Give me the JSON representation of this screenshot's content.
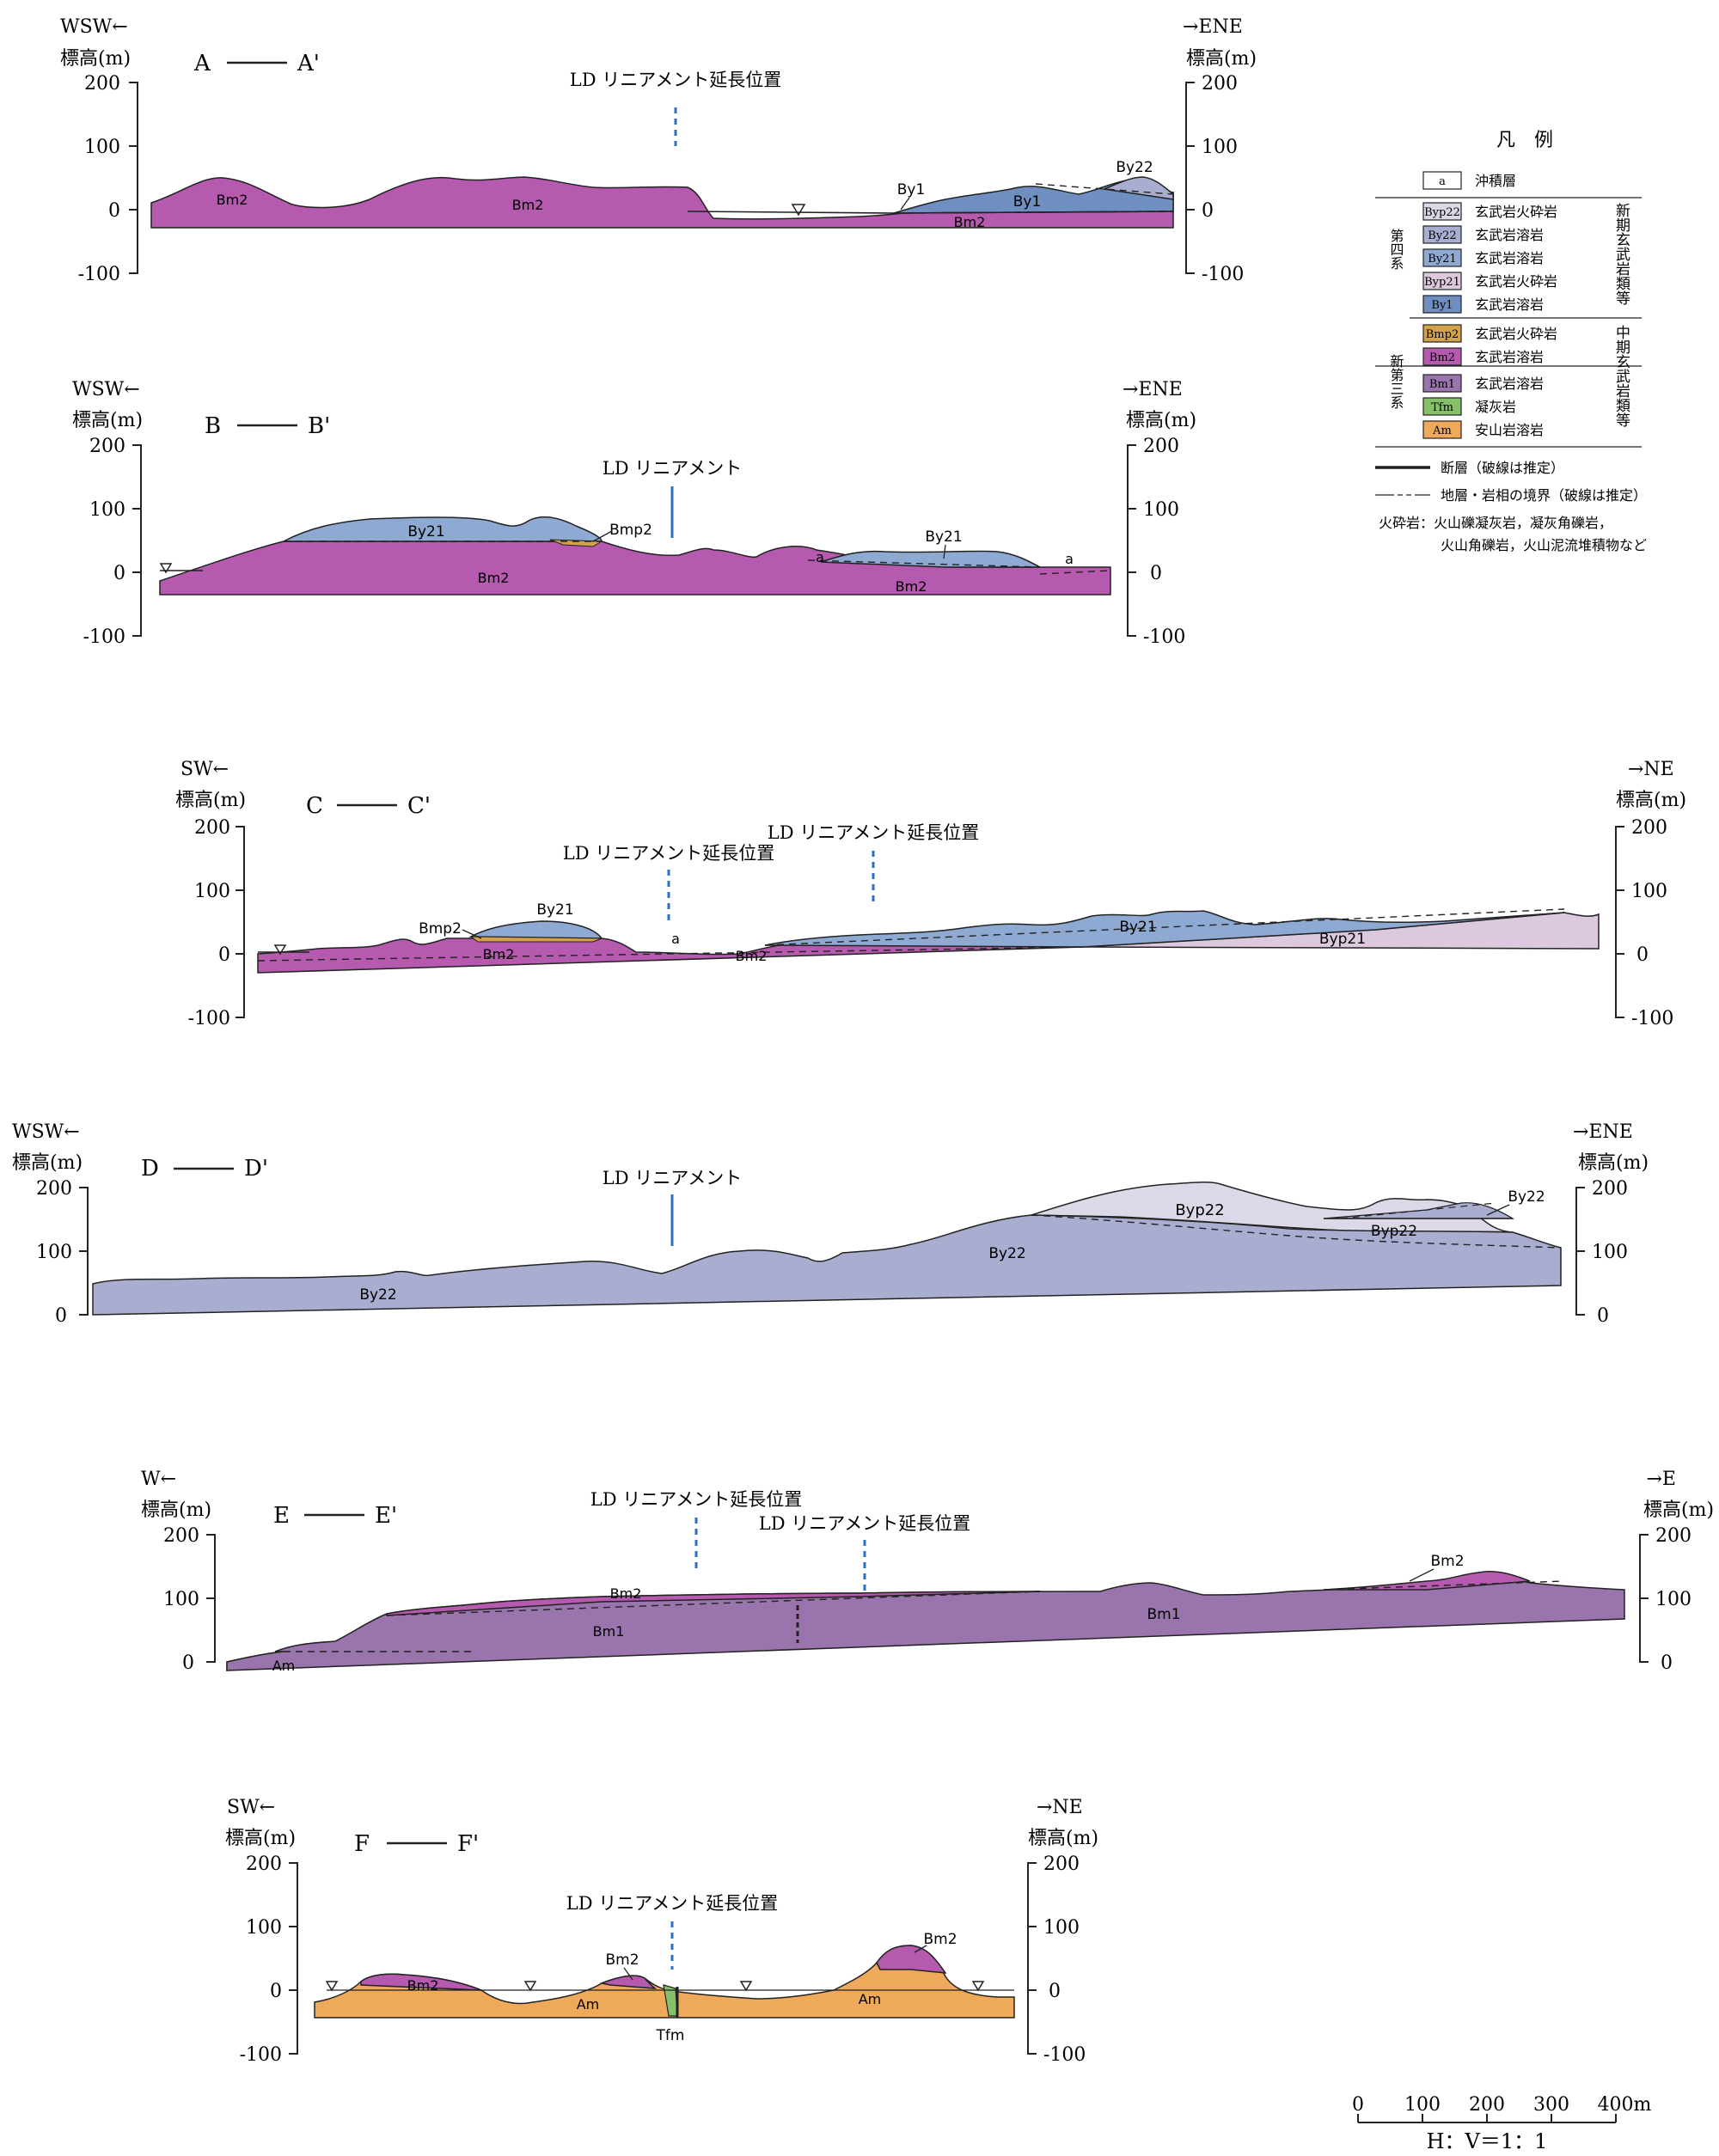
{
  "palette": {
    "bm2": "#b55aae",
    "bm1": "#9a74ad",
    "by1": "#6f8fc0",
    "by21": "#8ea9d2",
    "by22": "#a9add0",
    "byp21": "#ddc9dd",
    "byp22": "#dcd8e8",
    "am": "#eeaa5a",
    "tfm": "#86c06a",
    "bmp2": "#d4a24a",
    "lineament": "#2b6fc0",
    "stroke": "#222222"
  },
  "sections": [
    {
      "id": "A",
      "start": "A",
      "end": "A'",
      "left_dir": "WSW←",
      "right_dir": "→ENE",
      "axis_label": "標高(m)",
      "ticks": [
        "200",
        "100",
        "0",
        "-100"
      ],
      "lineament": "LD リニアメント延長位置",
      "units": [
        "Bm2",
        "Bm2",
        "By1",
        "By1",
        "By22",
        "Bm2"
      ]
    },
    {
      "id": "B",
      "start": "B",
      "end": "B'",
      "left_dir": "WSW←",
      "right_dir": "→ENE",
      "axis_label": "標高(m)",
      "ticks": [
        "200",
        "100",
        "0",
        "-100"
      ],
      "lineament": "LD リニアメント",
      "units": [
        "By21",
        "Bmp2",
        "Bm2",
        "a",
        "By21",
        "a",
        "Bm2"
      ]
    },
    {
      "id": "C",
      "start": "C",
      "end": "C'",
      "left_dir": "SW←",
      "right_dir": "→NE",
      "axis_label": "標高(m)",
      "ticks": [
        "200",
        "100",
        "0",
        "-100"
      ],
      "lineament_1": "LD リニアメント延長位置",
      "lineament_2": "LD リニアメント延長位置",
      "units": [
        "Bmp2",
        "By21",
        "Bm2",
        "a",
        "Bm2",
        "By21",
        "Byp21"
      ]
    },
    {
      "id": "D",
      "start": "D",
      "end": "D'",
      "left_dir": "WSW←",
      "right_dir": "→ENE",
      "axis_label": "標高(m)",
      "ticks": [
        "200",
        "100",
        "0"
      ],
      "lineament": "LD リニアメント",
      "units": [
        "By22",
        "By22",
        "Byp22",
        "Byp22",
        "By22"
      ]
    },
    {
      "id": "E",
      "start": "E",
      "end": "E'",
      "left_dir": "W←",
      "right_dir": "→E",
      "axis_label": "標高(m)",
      "ticks": [
        "200",
        "100",
        "0"
      ],
      "lineament_1": "LD リニアメント延長位置",
      "lineament_2": "LD リニアメント延長位置",
      "units": [
        "Bm2",
        "Bm1",
        "Am",
        "Bm1",
        "Bm2"
      ]
    },
    {
      "id": "F",
      "start": "F",
      "end": "F'",
      "left_dir": "SW←",
      "right_dir": "→NE",
      "axis_label": "標高(m)",
      "ticks": [
        "200",
        "100",
        "0",
        "-100"
      ],
      "lineament": "LD リニアメント延長位置",
      "units": [
        "Bm2",
        "Bm2",
        "Am",
        "Tfm",
        "Am",
        "Bm2"
      ]
    }
  ],
  "legend": {
    "title": "凡　例",
    "rows": [
      {
        "code": "a",
        "desc": "沖積層",
        "color": "#ffffff"
      },
      {
        "code": "Byp22",
        "desc": "玄武岩火砕岩",
        "color": "#dcd8e8"
      },
      {
        "code": "By22",
        "desc": "玄武岩溶岩",
        "color": "#a9add0"
      },
      {
        "code": "By21",
        "desc": "玄武岩溶岩",
        "color": "#8ea9d2"
      },
      {
        "code": "Byp21",
        "desc": "玄武岩火砕岩",
        "color": "#ddc9dd"
      },
      {
        "code": "By1",
        "desc": "玄武岩溶岩",
        "color": "#6f8fc0"
      },
      {
        "code": "Bmp2",
        "desc": "玄武岩火砕岩",
        "color": "#d4a24a"
      },
      {
        "code": "Bm2",
        "desc": "玄武岩溶岩",
        "color": "#b55aae"
      },
      {
        "code": "Bm1",
        "desc": "玄武岩溶岩",
        "color": "#9a74ad"
      },
      {
        "code": "Tfm",
        "desc": "凝灰岩",
        "color": "#86c06a"
      },
      {
        "code": "Am",
        "desc": "安山岩溶岩",
        "color": "#eeaa5a"
      }
    ],
    "group_quaternary": "第四系",
    "group_neogene": "新第三系",
    "group_new_basalt": "新期玄武岩類等",
    "group_mid_basalt": "中期玄武岩類等",
    "fault_note": "断層（破線は推定）",
    "boundary_note": "地層・岩相の境界（破線は推定）",
    "pyro_note_1": "火砕岩：火山礫凝灰岩，凝灰角礫岩，",
    "pyro_note_2": "火山角礫岩，火山泥流堆積物など"
  },
  "scale": {
    "ticks": [
      "0",
      "100",
      "200",
      "300",
      "400m"
    ],
    "ratio": "H：V＝1：1"
  }
}
